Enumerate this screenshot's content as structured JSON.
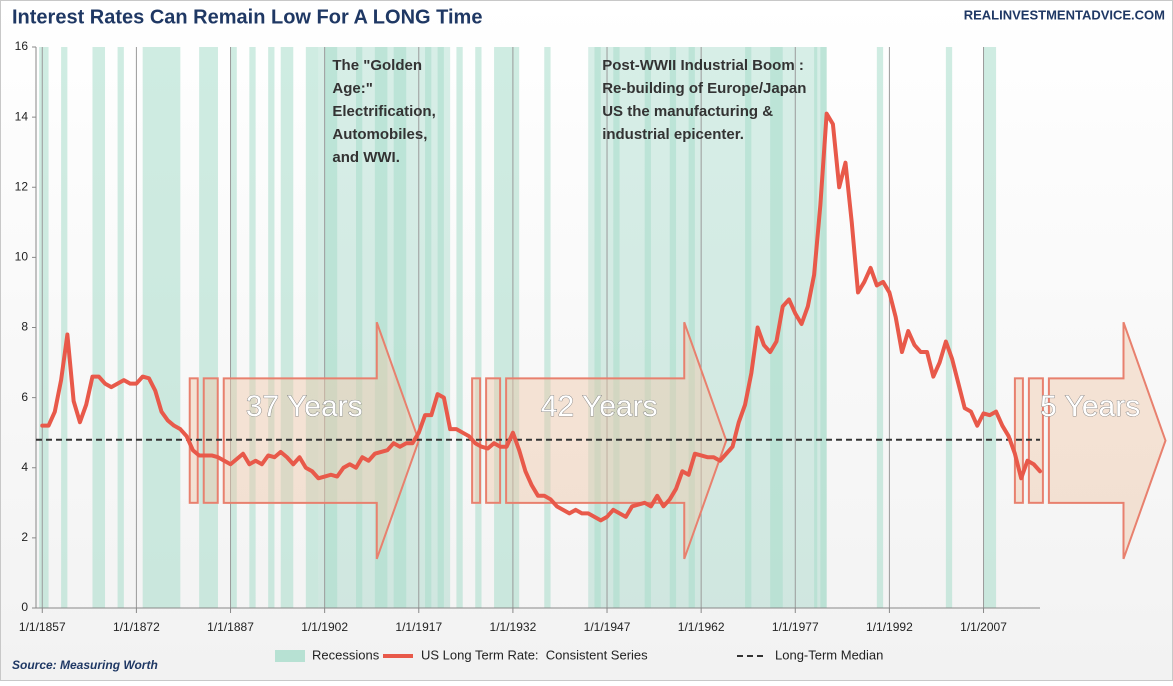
{
  "chart_data": {
    "type": "line",
    "title": "Interest Rates Can Remain Low For A LONG Time",
    "watermark": "REALINVESTMENTADVICE.COM",
    "source": "Source: Measuring Worth",
    "x": [
      1857,
      1858,
      1859,
      1860,
      1861,
      1862,
      1863,
      1864,
      1865,
      1866,
      1867,
      1868,
      1869,
      1870,
      1871,
      1872,
      1873,
      1874,
      1875,
      1876,
      1877,
      1878,
      1879,
      1880,
      1881,
      1882,
      1883,
      1884,
      1885,
      1886,
      1887,
      1888,
      1889,
      1890,
      1891,
      1892,
      1893,
      1894,
      1895,
      1896,
      1897,
      1898,
      1899,
      1900,
      1901,
      1902,
      1903,
      1904,
      1905,
      1906,
      1907,
      1908,
      1909,
      1910,
      1911,
      1912,
      1913,
      1914,
      1915,
      1916,
      1917,
      1918,
      1919,
      1920,
      1921,
      1922,
      1923,
      1924,
      1925,
      1926,
      1927,
      1928,
      1929,
      1930,
      1931,
      1932,
      1933,
      1934,
      1935,
      1936,
      1937,
      1938,
      1939,
      1940,
      1941,
      1942,
      1943,
      1944,
      1945,
      1946,
      1947,
      1948,
      1949,
      1950,
      1951,
      1952,
      1953,
      1954,
      1955,
      1956,
      1957,
      1958,
      1959,
      1960,
      1961,
      1962,
      1963,
      1964,
      1965,
      1966,
      1967,
      1968,
      1969,
      1970,
      1971,
      1972,
      1973,
      1974,
      1975,
      1976,
      1977,
      1978,
      1979,
      1980,
      1981,
      1982,
      1983,
      1984,
      1985,
      1986,
      1987,
      1988,
      1989,
      1990,
      1991,
      1992,
      1993,
      1994,
      1995,
      1996,
      1997,
      1998,
      1999,
      2000,
      2001,
      2002,
      2003,
      2004,
      2005,
      2006,
      2007,
      2008,
      2009,
      2010,
      2011,
      2012,
      2013,
      2014,
      2015,
      2016
    ],
    "series": [
      {
        "name": "US Long Term Rate:  Consistent Series",
        "color": "#e8594a",
        "values": [
          5.2,
          5.2,
          5.6,
          6.5,
          7.8,
          5.9,
          5.3,
          5.8,
          6.6,
          6.6,
          6.4,
          6.3,
          6.4,
          6.5,
          6.4,
          6.4,
          6.6,
          6.55,
          6.2,
          5.6,
          5.35,
          5.2,
          5.1,
          4.9,
          4.5,
          4.35,
          4.35,
          4.35,
          4.3,
          4.2,
          4.1,
          4.25,
          4.4,
          4.1,
          4.2,
          4.1,
          4.35,
          4.3,
          4.45,
          4.3,
          4.1,
          4.3,
          4.0,
          3.9,
          3.7,
          3.75,
          3.8,
          3.75,
          4.0,
          4.1,
          4.0,
          4.3,
          4.2,
          4.4,
          4.45,
          4.5,
          4.7,
          4.6,
          4.7,
          4.7,
          5.0,
          5.5,
          5.5,
          6.1,
          6.0,
          5.1,
          5.1,
          5.0,
          4.9,
          4.7,
          4.6,
          4.55,
          4.7,
          4.6,
          4.6,
          5.0,
          4.5,
          3.9,
          3.5,
          3.2,
          3.2,
          3.1,
          2.9,
          2.8,
          2.7,
          2.8,
          2.7,
          2.7,
          2.6,
          2.5,
          2.6,
          2.8,
          2.7,
          2.6,
          2.9,
          2.95,
          3.0,
          2.9,
          3.2,
          2.9,
          3.1,
          3.4,
          3.9,
          3.8,
          4.4,
          4.35,
          4.3,
          4.3,
          4.2,
          4.4,
          4.6,
          5.3,
          5.8,
          6.7,
          8.0,
          7.5,
          7.3,
          7.6,
          8.6,
          8.8,
          8.4,
          8.1,
          8.6,
          9.5,
          11.5,
          14.1,
          13.8,
          12.0,
          12.7,
          11.0,
          9.0,
          9.3,
          9.7,
          9.2,
          9.3,
          9.0,
          8.3,
          7.3,
          7.9,
          7.5,
          7.3,
          7.3,
          6.6,
          7.0,
          7.6,
          7.1,
          6.4,
          5.7,
          5.6,
          5.2,
          5.55,
          5.5,
          5.6,
          5.2,
          4.9,
          4.4,
          3.7,
          4.2,
          4.1,
          3.9
        ]
      }
    ],
    "median": {
      "name": "Long-Term Median",
      "value": 4.8,
      "color": "#333333"
    },
    "recessions": {
      "name": "Recessions",
      "color": "#a8dccb",
      "ranges": [
        [
          1856.5,
          1858
        ],
        [
          1860,
          1861
        ],
        [
          1865,
          1867
        ],
        [
          1869,
          1870
        ],
        [
          1873,
          1879
        ],
        [
          1882,
          1885
        ],
        [
          1887,
          1888
        ],
        [
          1890,
          1891
        ],
        [
          1893,
          1894
        ],
        [
          1895,
          1897
        ],
        [
          1899,
          1901
        ],
        [
          1902,
          1904
        ],
        [
          1907,
          1908
        ],
        [
          1910,
          1912
        ],
        [
          1913,
          1915
        ],
        [
          1918,
          1919
        ],
        [
          1920,
          1921
        ],
        [
          1923,
          1924
        ],
        [
          1926,
          1927
        ],
        [
          1929,
          1933
        ],
        [
          1937,
          1938
        ],
        [
          1945,
          1946
        ],
        [
          1948,
          1949
        ],
        [
          1953,
          1954
        ],
        [
          1957,
          1958
        ],
        [
          1960,
          1961
        ],
        [
          1969,
          1970
        ],
        [
          1973,
          1975
        ],
        [
          1980,
          1980.5
        ],
        [
          1981,
          1982
        ],
        [
          1990,
          1991
        ],
        [
          2001,
          2002
        ],
        [
          2007,
          2009
        ]
      ]
    },
    "periods": [
      {
        "x": [
          1901,
          1922
        ],
        "lines": [
          "The \"Golden",
          "Age:\"",
          "Electrification,",
          "Automobiles,",
          "and WWI."
        ]
      },
      {
        "x": [
          1944,
          1982
        ],
        "lines": [
          "Post-WWII Industrial Boom :",
          "Re-building of Europe/Japan",
          "US the manufacturing &",
          "industrial epicenter."
        ]
      }
    ],
    "arrows": [
      {
        "label": "37 Years",
        "x": [
          1880.5,
          1917
        ]
      },
      {
        "label": "42 Years",
        "x": [
          1925.5,
          1966
        ]
      },
      {
        "label": "5 Years",
        "x": [
          2012,
          2036
        ]
      }
    ],
    "xlim": [
      1856,
      2016
    ],
    "xticks": [
      {
        "value": 1857,
        "label": "1/1/1857"
      },
      {
        "value": 1872,
        "label": "1/1/1872"
      },
      {
        "value": 1887,
        "label": "1/1/1887"
      },
      {
        "value": 1902,
        "label": "1/1/1902"
      },
      {
        "value": 1917,
        "label": "1/1/1917"
      },
      {
        "value": 1932,
        "label": "1/1/1932"
      },
      {
        "value": 1947,
        "label": "1/1/1947"
      },
      {
        "value": 1962,
        "label": "1/1/1962"
      },
      {
        "value": 1977,
        "label": "1/1/1977"
      },
      {
        "value": 1992,
        "label": "1/1/1992"
      },
      {
        "value": 2007,
        "label": "1/1/2007"
      }
    ],
    "ylim": [
      0,
      16
    ],
    "yticks": [
      0,
      2,
      4,
      6,
      8,
      10,
      12,
      14,
      16
    ],
    "grid": "x"
  }
}
